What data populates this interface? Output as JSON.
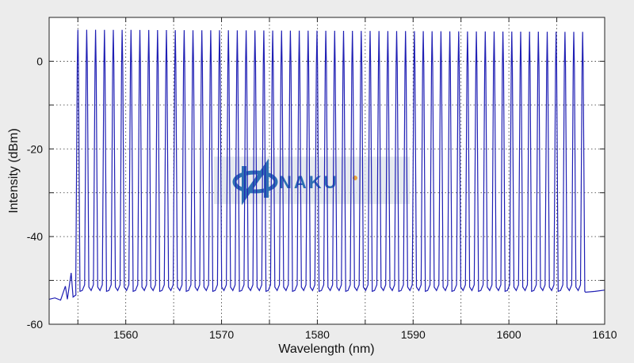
{
  "chart_data": {
    "type": "line",
    "title": "",
    "xlabel": "Wavelength (nm)",
    "ylabel": "Intensity (dBm)",
    "xlim": [
      1552,
      1610
    ],
    "ylim": [
      -60,
      10
    ],
    "x_ticks": [
      1560,
      1570,
      1580,
      1590,
      1600,
      1610
    ],
    "y_ticks": [
      0,
      -20,
      -40,
      -60
    ],
    "x_tick_labels": [
      "1560",
      "1570",
      "1580",
      "1590",
      "1600",
      "1610"
    ],
    "y_tick_labels": [
      "0",
      "-20",
      "-40",
      "-60"
    ],
    "grid": true,
    "grid_style": "dotted",
    "series_color": "#1f1fb4",
    "comb": {
      "start_nm": 1555.0,
      "end_nm": 1607.7,
      "line_count": 58,
      "peak_dbm": 7.2,
      "floor_dbm": -51.5,
      "baseline_left_dbm": -54.3,
      "baseline_right_dbm": -52.5
    },
    "watermark": "NAKU"
  }
}
